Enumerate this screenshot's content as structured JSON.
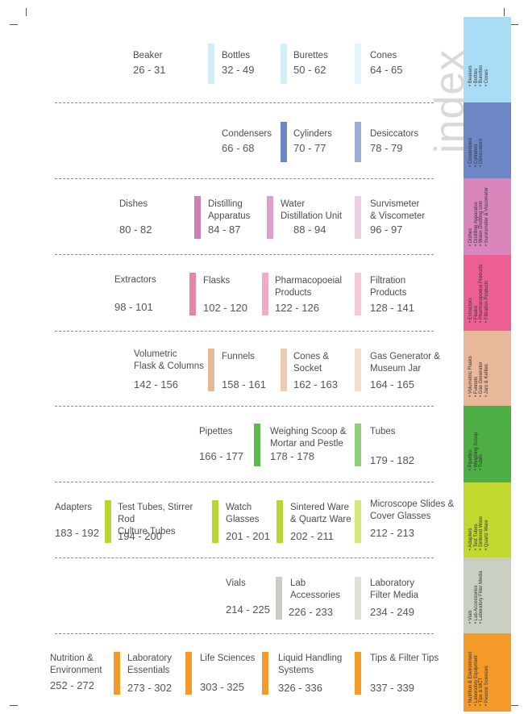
{
  "index_title": "index",
  "colors": {
    "blue_light": "#d3edf8",
    "blue_dark": "#6f86c6",
    "pink": "#cf7fb5",
    "magenta": "#e86e9c",
    "peach": "#eac3a7",
    "green": "#5dba4e",
    "lime": "#b9d734",
    "grey": "#c9d0c3",
    "orange": "#f39a28"
  },
  "entries": [
    {
      "name": "Beaker",
      "pages": "26 - 31"
    },
    {
      "name": "Bottles",
      "pages": "32 - 49"
    },
    {
      "name": "Burettes",
      "pages": "50 - 62"
    },
    {
      "name": "Cones",
      "pages": "64 - 65"
    },
    {
      "name": "Condensers",
      "pages": "66 - 68"
    },
    {
      "name": "Cylinders",
      "pages": "70 - 77"
    },
    {
      "name": "Desiccators",
      "pages": "78 - 79"
    },
    {
      "name": "Dishes",
      "pages": "80 - 82"
    },
    {
      "name": "Distilling\nApparatus",
      "pages": "84 - 87"
    },
    {
      "name": "Water\nDistillation Unit",
      "pages": "88 - 94"
    },
    {
      "name": "Survismeter\n& Viscometer",
      "pages": "96 - 97"
    },
    {
      "name": "Extractors",
      "pages": "98 - 101"
    },
    {
      "name": "Flasks",
      "pages": "102 - 120"
    },
    {
      "name": "Pharmacopoeial\nProducts",
      "pages": "122 - 126"
    },
    {
      "name": "Filtration\nProducts",
      "pages": "128 - 141"
    },
    {
      "name": "Volumetric\nFlask & Columns",
      "pages": "142 - 156"
    },
    {
      "name": "Funnels",
      "pages": "158 - 161"
    },
    {
      "name": "Cones &\nSocket",
      "pages": "162 - 163"
    },
    {
      "name": "Gas Generator &\nMuseum Jar",
      "pages": "164 - 165"
    },
    {
      "name": "Pipettes",
      "pages": "166 - 177"
    },
    {
      "name": "Weighing Scoop &\nMortar and Pestle",
      "pages": "178 - 178"
    },
    {
      "name": "Tubes",
      "pages": "179 - 182"
    },
    {
      "name": "Adapters",
      "pages": "183 - 192"
    },
    {
      "name": "Test Tubes, Stirrer Rod\nCulture Tubes",
      "pages": "194 - 200"
    },
    {
      "name": "Watch\nGlasses",
      "pages": "201 - 201"
    },
    {
      "name": "Sintered Ware\n& Quartz Ware",
      "pages": "202 - 211"
    },
    {
      "name": "Microscope Slides &\nCover Glasses",
      "pages": "212 - 213"
    },
    {
      "name": "Vials",
      "pages": "214 - 225"
    },
    {
      "name": "Lab\nAccessories",
      "pages": "226 - 233"
    },
    {
      "name": "Laboratory\nFilter Media",
      "pages": "234 - 249"
    },
    {
      "name": "Nutrition &\nEnvironment",
      "pages": "252 - 272"
    },
    {
      "name": "Laboratory\nEssentials",
      "pages": "273 - 302"
    },
    {
      "name": "Life Sciences",
      "pages": "303 - 325"
    },
    {
      "name": "Liquid Handling\nSystems",
      "pages": "326 - 336"
    },
    {
      "name": "Tips & Filter Tips",
      "pages": "337 - 339"
    }
  ],
  "tabs": [
    {
      "items": [
        "Beakers",
        "Bottles",
        "Burettes",
        "Cones"
      ]
    },
    {
      "items": [
        "Condensers",
        "Cylinders",
        "Desiccators"
      ]
    },
    {
      "items": [
        "Dishes",
        "Distilling Apparatus",
        "Water Distilling Unit",
        "Survismeter & Viscometer"
      ]
    },
    {
      "items": [
        "Extractors",
        "Flasks",
        "Pharmacopoeial Products",
        "Filtration Products"
      ]
    },
    {
      "items": [
        "Volumetric Flasks",
        "Funnels",
        "Gas Generator",
        "Jars & Kettles"
      ]
    },
    {
      "items": [
        "Pipettes",
        "Weighing Scoop",
        "Tubes"
      ]
    },
    {
      "items": [
        "Adapters",
        "Test Tubes",
        "Sintered Ware",
        "Quartz Ware"
      ]
    },
    {
      "items": [
        "Vials",
        "Lab Accessories",
        "Laboratory Filter Media"
      ]
    },
    {
      "items": [
        "Nutrition & Environment",
        "Laboratory Equipment",
        "Tips & MCT",
        "Pesons Sciences"
      ]
    }
  ]
}
